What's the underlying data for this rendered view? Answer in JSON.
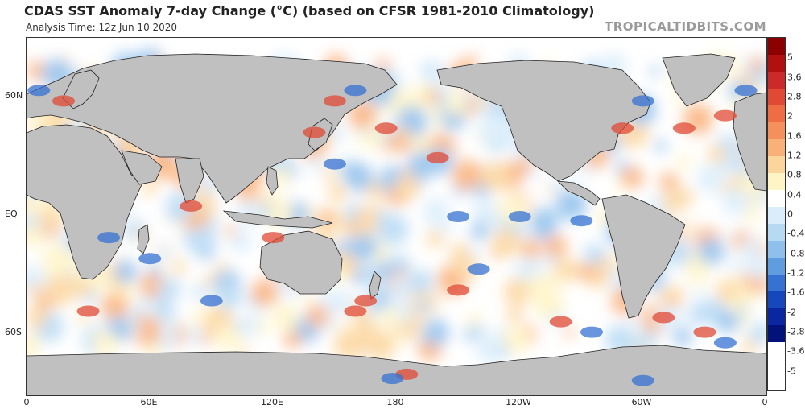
{
  "header": {
    "title": "CDAS SST Anomaly 7-day Change (°C) (based on CFSR 1981-2010 Climatology)",
    "subtitle": "Analysis Time: 12z Jun 10 2020",
    "credit": "TROPICALTIDBITS.COM"
  },
  "map": {
    "lat_labels": [
      "60N",
      "EQ",
      "60S"
    ],
    "lon_labels": [
      "0",
      "60E",
      "120E",
      "180",
      "120W",
      "60W",
      "0"
    ],
    "land_color": "#c0c0c0",
    "ocean_color": "#ffffff"
  },
  "colorbar": {
    "labels": [
      "5",
      "3.6",
      "2.8",
      "2",
      "1.6",
      "1.2",
      "0.8",
      "0.4",
      "0",
      "-0.4",
      "-0.8",
      "-1.2",
      "-1.6",
      "-2",
      "-2.8",
      "-3.6",
      "-5"
    ],
    "colors": [
      "#8b0000",
      "#b21010",
      "#cc2a2a",
      "#e04a35",
      "#ee6d45",
      "#f5905c",
      "#f9b079",
      "#fcd59c",
      "#fff4c6",
      "#ffffff",
      "#daedfb",
      "#b6d9f4",
      "#8fc0ec",
      "#5f9de0",
      "#3672d2",
      "#1747bc",
      "#0a26a0",
      "#02127a"
    ]
  },
  "anomalies": {
    "warm": [
      {
        "lon": 18,
        "lat": 55
      },
      {
        "lon": 140,
        "lat": 40
      },
      {
        "lon": 150,
        "lat": 55
      },
      {
        "lon": -20,
        "lat": 48
      },
      {
        "lon": -40,
        "lat": 42
      },
      {
        "lon": -70,
        "lat": 42
      },
      {
        "lon": 30,
        "lat": -45
      },
      {
        "lon": -50,
        "lat": -48
      },
      {
        "lon": 175,
        "lat": 42
      },
      {
        "lon": -150,
        "lat": -35
      },
      {
        "lon": -160,
        "lat": 28
      },
      {
        "lon": 80,
        "lat": 5
      },
      {
        "lon": 120,
        "lat": -10
      },
      {
        "lon": -100,
        "lat": -50
      },
      {
        "lon": -30,
        "lat": -55
      },
      {
        "lon": 160,
        "lat": -45
      },
      {
        "lon": -175,
        "lat": -75
      },
      {
        "lon": 165,
        "lat": -40
      }
    ],
    "cool": [
      {
        "lon": -120,
        "lat": 0
      },
      {
        "lon": -150,
        "lat": 0
      },
      {
        "lon": -90,
        "lat": -2
      },
      {
        "lon": 160,
        "lat": 60
      },
      {
        "lon": -10,
        "lat": 60
      },
      {
        "lon": 6,
        "lat": 60
      },
      {
        "lon": 150,
        "lat": 25
      },
      {
        "lon": -140,
        "lat": -25
      },
      {
        "lon": 60,
        "lat": -20
      },
      {
        "lon": -85,
        "lat": -55
      },
      {
        "lon": -20,
        "lat": -60
      },
      {
        "lon": 90,
        "lat": -40
      },
      {
        "lon": 178,
        "lat": -77
      },
      {
        "lon": -60,
        "lat": -78
      },
      {
        "lon": 40,
        "lat": -10
      },
      {
        "lon": -60,
        "lat": 55
      }
    ]
  }
}
